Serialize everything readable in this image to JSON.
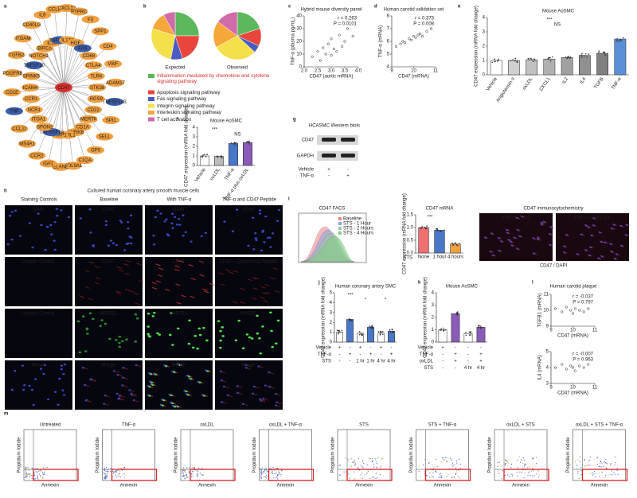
{
  "panel_letters": [
    "a",
    "b",
    "c",
    "d",
    "e",
    "f",
    "g",
    "h",
    "i",
    "j",
    "k",
    "l",
    "m"
  ],
  "a": {
    "center": "CD47",
    "nodes": [
      {
        "label": "STK38",
        "color": "#f0a040"
      },
      {
        "label": "TNFSF13B",
        "color": "#3a5ca8"
      },
      {
        "label": "RGS9",
        "color": "#f0a040"
      },
      {
        "label": "SPI1",
        "color": "#f0a040"
      },
      {
        "label": "CD22",
        "color": "#f0a040"
      },
      {
        "label": "SELL",
        "color": "#f0a040"
      },
      {
        "label": "MERTK",
        "color": "#f0a040"
      },
      {
        "label": "GP5",
        "color": "#f0a040"
      },
      {
        "label": "CD1A",
        "color": "#f0a040"
      },
      {
        "label": "C1QA",
        "color": "#f0a040"
      },
      {
        "label": "AURKB",
        "color": "#f0a040"
      },
      {
        "label": "COL9A1",
        "color": "#f0a040"
      },
      {
        "label": "IL1RL1",
        "color": "#f0a040"
      },
      {
        "label": "ELANE",
        "color": "#f0a040"
      },
      {
        "label": "TIMP1",
        "color": "#f0a040"
      },
      {
        "label": "IGF1",
        "color": "#f0a040"
      },
      {
        "label": "TNFRSF1A",
        "color": "#3a5ca8"
      },
      {
        "label": "CCR2",
        "color": "#f0a040"
      },
      {
        "label": "SPON2",
        "color": "#f0a040"
      },
      {
        "label": "MS4A1",
        "color": "#f0a040"
      },
      {
        "label": "ITGA1",
        "color": "#f0a040"
      },
      {
        "label": "CCL11",
        "color": "#f0a040"
      },
      {
        "label": "NCR1",
        "color": "#f0a040"
      },
      {
        "label": "TNF",
        "color": "#3a5ca8"
      },
      {
        "label": "CCR1",
        "color": "#f0a040"
      },
      {
        "label": "CD1E",
        "color": "#f0a040"
      },
      {
        "label": "ICAM4",
        "color": "#f0a040"
      },
      {
        "label": "PDGFRB",
        "color": "#f0a040"
      },
      {
        "label": "SPINK5",
        "color": "#f0a040"
      },
      {
        "label": "TGFB2",
        "color": "#f0a040"
      },
      {
        "label": "TNFSF10",
        "color": "#3a5ca8"
      },
      {
        "label": "ITGAM",
        "color": "#f0a040"
      },
      {
        "label": "NOTCH1",
        "color": "#f0a040"
      },
      {
        "label": "CD40LG",
        "color": "#f0a040"
      },
      {
        "label": "BIRC5",
        "color": "#f0a040"
      },
      {
        "label": "IL6",
        "color": "#f0a040"
      },
      {
        "label": "IL10",
        "color": "#f0a040"
      },
      {
        "label": "CCL2",
        "color": "#f0a040"
      },
      {
        "label": "TNFRSF4",
        "color": "#3a5ca8"
      },
      {
        "label": "CXCL12",
        "color": "#f0a040"
      },
      {
        "label": "IL17A",
        "color": "#f0a040"
      },
      {
        "label": "PTPRC",
        "color": "#f0a040"
      },
      {
        "label": "HGF",
        "color": "#f0a040"
      },
      {
        "label": "F3",
        "color": "#f0a040"
      },
      {
        "label": "FAS",
        "color": "#3a5ca8"
      },
      {
        "label": "SPP1",
        "color": "#f0a040"
      },
      {
        "label": "CD68",
        "color": "#f0a040"
      },
      {
        "label": "CD4",
        "color": "#f0a040"
      },
      {
        "label": "CTLA4",
        "color": "#f0a040"
      },
      {
        "label": "VWF",
        "color": "#f0a040"
      },
      {
        "label": "TLR4",
        "color": "#f0a040"
      },
      {
        "label": "ADAM17",
        "color": "#f0a040"
      }
    ]
  },
  "b": {
    "pies": [
      {
        "name": "Expected",
        "values": [
          25,
          20,
          8,
          27,
          12,
          8
        ]
      },
      {
        "name": "Observed",
        "values": [
          20,
          12,
          5,
          30,
          18,
          15
        ]
      }
    ],
    "legend": [
      {
        "name": "Inflammation mediated by chemokine and cytokine signaling pathway",
        "color": "#5cb85c",
        "text_color": "#d9302c"
      },
      {
        "name": "Apoptosis signaling pathway",
        "color": "#e8463c",
        "text_color": "#222"
      },
      {
        "name": "Fas signaling pathway",
        "color": "#4a5cc0",
        "text_color": "#222"
      },
      {
        "name": "Integrin signaling pathway",
        "color": "#f3e04a",
        "text_color": "#222"
      },
      {
        "name": "Interleukin signaling pathway",
        "color": "#f5a73a",
        "text_color": "#222"
      },
      {
        "name": "T cell activation",
        "color": "#d16aa8",
        "text_color": "#222"
      }
    ]
  },
  "c": {
    "title": "Hybrid mouse diversity panel",
    "xlabel": "CD47 (aortic mRNA)",
    "ylabel": "TNF-α (plasma pg/mL)",
    "stats": [
      "r = 0.263",
      "P = 0.0101"
    ],
    "x": [
      2.3,
      2.5,
      2.6,
      2.7,
      2.8,
      2.9,
      3.0,
      3.0,
      3.1,
      3.2,
      3.3,
      3.4,
      3.5,
      3.6,
      3.8
    ],
    "y": [
      8,
      12,
      5,
      15,
      10,
      18,
      9,
      22,
      14,
      12,
      25,
      16,
      20,
      30,
      24
    ],
    "xlim": [
      2,
      4
    ],
    "ylim": [
      0,
      40
    ],
    "xticks": [
      {
        "value": 2,
        "label": "2.0"
      },
      {
        "value": 2.5,
        "label": "2.5"
      },
      {
        "value": 3,
        "label": "3.0"
      },
      {
        "value": 3.5,
        "label": "3.5"
      },
      {
        "value": 4,
        "label": "4.0"
      }
    ],
    "yticks": [
      0,
      10,
      20,
      30,
      40
    ]
  },
  "d": {
    "title": "Human carotid validation set",
    "xlabel": "CD47 (mRNA)",
    "ylabel": "TNF-α (mRNA)",
    "stats": [
      "r = 0.373",
      "P = 0.008"
    ],
    "x": [
      9.2,
      9.4,
      9.5,
      9.6,
      9.8,
      9.9,
      10.0,
      10.1,
      10.2,
      10.3,
      10.4,
      10.6,
      10.8
    ],
    "y": [
      5.6,
      5.8,
      6.0,
      5.9,
      6.2,
      6.1,
      6.4,
      6.3,
      6.5,
      6.6,
      6.4,
      6.8,
      7.0
    ],
    "xlim": [
      9,
      11
    ],
    "ylim": [
      4,
      8
    ],
    "xticks": [
      9,
      10,
      11
    ],
    "yticks": [
      4,
      5,
      6,
      7,
      8
    ]
  },
  "e": {
    "title": "Mouse AoSMC",
    "ylabel": "CD47 expression (mRNA fold change)",
    "categories": [
      "Vehicle",
      "Angiotensin II",
      "oxLDL",
      "CXCL1",
      "IL2",
      "IL4",
      "TGFB",
      "TNF-α"
    ],
    "values": [
      1,
      1,
      1.05,
      1.1,
      1.2,
      1.35,
      1.5,
      2.5
    ],
    "colors": [
      "#fff",
      "#d0d0d0",
      "#c0c0c0",
      "#b0b0b0",
      "#a0a0a0",
      "#909090",
      "#808080",
      "#5a8fd8"
    ],
    "ylim": [
      0,
      4
    ],
    "yticks": [
      0,
      1,
      2,
      3,
      4
    ],
    "annotations": [
      "***",
      "NS"
    ]
  },
  "f": {
    "title": "Mouse AoSMC",
    "ylabel": "CD47 expression (mRNA fold change)",
    "categories": [
      "Vehicle",
      "oxLDL",
      "TNF-α",
      "TNF-α plus oxLDL"
    ],
    "values": [
      1,
      0.95,
      2.3,
      2.4
    ],
    "colors": [
      "#fff",
      "#bbb",
      "#4a78c8",
      "#8a5cb8"
    ],
    "ylim": [
      0,
      4
    ],
    "yticks": [
      0,
      1,
      2,
      3,
      4
    ],
    "annotations": [
      "***",
      "NS"
    ]
  },
  "g": {
    "title": "HCASMC Western blots",
    "bands": [
      "CD47",
      "GAPDH"
    ],
    "conditions": [
      {
        "label": "Vehicle",
        "cells": [
          "+",
          "-"
        ]
      },
      {
        "label": "TNF-α",
        "cells": [
          "-",
          "+"
        ]
      }
    ]
  },
  "h": {
    "title": "Cultured human coronary artery smooth muscle cells",
    "headers": [
      "Staining Controls",
      "Baseline",
      "With TNF-α",
      "TNF-α and CD47 Peptide"
    ],
    "rows": [
      {
        "color": "#6fa8ff",
        "cells": [
          "DAPI",
          "DAPI",
          "DAPI",
          "DAPI"
        ]
      },
      {
        "color": "#ff5050",
        "cells": [
          "Isotype Control",
          "CD47",
          "CD47",
          "CD47 + Quenching Peptide"
        ]
      },
      {
        "color": "#5cd65c",
        "cells": [
          "Isotype Control",
          "HMGB1",
          "HMGB1",
          "HMGB1"
        ]
      },
      {
        "color": "#c07ce8",
        "cells": [
          "Merge",
          "Merge",
          "Merge",
          "Merge"
        ]
      }
    ]
  },
  "i": {
    "facs_title": "CD47 FACS",
    "facs_legend": [
      {
        "name": "Baseline",
        "color": "#f08080"
      },
      {
        "name": "STS - 1 Hour",
        "color": "#80a8e8"
      },
      {
        "name": "STS - 2 Hours",
        "color": "#9cc8a0"
      },
      {
        "name": "STS - 4 Hours",
        "color": "#80d080"
      }
    ],
    "mrna": {
      "title": "CD47 mRNA",
      "ylabel": "CD47 expression (mRNA fold change)",
      "xlabel": "STS",
      "categories": [
        "None",
        "1 hour",
        "4 hours"
      ],
      "values": [
        1,
        0.9,
        0.35
      ],
      "colors": [
        "#f07070",
        "#4a78c8",
        "#f0a040"
      ],
      "ylim": [
        0,
        1.5
      ],
      "yticks": [
        {
          "value": 0,
          "label": "0.0"
        },
        {
          "value": 0.5,
          "label": "0.5"
        },
        {
          "value": 1,
          "label": "1.0"
        },
        {
          "value": 1.5,
          "label": "1.5"
        }
      ],
      "annotations": [
        "***"
      ]
    },
    "icc_title": "CD47 immunocytochemistry",
    "icc_panels": [
      "TNF-α - STS",
      "TNF-α + STS 4hr"
    ],
    "icc_caption": "CD47 / DAPI"
  },
  "j": {
    "title": "Human coronary artery SMC",
    "ylabel": "CD47 expression (mRNA fold change)",
    "values": [
      1,
      2.3,
      0.9,
      1.5,
      0.9,
      1.1
    ],
    "colors": [
      "#fff",
      "#4a78c8",
      "#fff",
      "#4a78c8",
      "#fff",
      "#4a78c8"
    ],
    "ylim": [
      0,
      5
    ],
    "yticks": [
      0,
      1,
      2,
      3,
      4,
      5
    ],
    "annotations": [
      "***",
      "*",
      "*"
    ],
    "conditions": [
      {
        "label": "Vehicle",
        "cells": [
          "+",
          "-",
          "+",
          "-",
          "+",
          "-"
        ]
      },
      {
        "label": "TNF-α",
        "cells": [
          "-",
          "+",
          "-",
          "+",
          "-",
          "+"
        ]
      },
      {
        "label": "STS",
        "cells": [
          "-",
          "-",
          "1 hr",
          "1 hr",
          "4 hr",
          "4 hr"
        ]
      }
    ]
  },
  "k": {
    "title": "Mouse AoSMC",
    "ylabel": "CD47 expression (mRNA fold change)",
    "values": [
      1,
      2.3,
      0.7,
      1.2
    ],
    "colors": [
      "#fff",
      "#8a5cb8",
      "#fff",
      "#8a5cb8"
    ],
    "ylim": [
      0,
      4
    ],
    "yticks": [
      0,
      1,
      2,
      3,
      4
    ],
    "conditions": [
      {
        "label": "Vehicle",
        "cells": [
          "+",
          "-",
          "-",
          "-"
        ]
      },
      {
        "label": "TNF-α",
        "cells": [
          "-",
          "+",
          "-",
          "+"
        ]
      },
      {
        "label": "oxLDL",
        "cells": [
          "-",
          "+",
          "-",
          "+"
        ]
      },
      {
        "label": "STS",
        "cells": [
          "-",
          "-",
          "4 hr",
          "4 hr"
        ]
      }
    ]
  },
  "l": {
    "title": "Human carotid plaque",
    "plots": [
      {
        "xlabel": "CD47 (mRNA)",
        "ylabel": "TGFB1 (mRNA)",
        "stats": [
          "r = -0.037",
          "P = 0.797"
        ],
        "x": [
          9.2,
          9.5,
          9.7,
          9.9,
          10.0,
          10.1,
          10.3,
          10.5,
          10.7
        ],
        "y": [
          10.1,
          9.9,
          10.2,
          10.0,
          9.8,
          10.1,
          10.0,
          9.9,
          10.1
        ],
        "xlim": [
          9,
          11
        ],
        "ylim": [
          9,
          11
        ],
        "xticks": [
          9,
          10,
          11
        ],
        "yticks": [
          9,
          10,
          11
        ]
      },
      {
        "xlabel": "CD47 (mRNA)",
        "ylabel": "IL4 (mRNA)",
        "stats": [
          "r = -0.007",
          "P = 0.963"
        ],
        "x": [
          9.2,
          9.5,
          9.7,
          9.9,
          10.0,
          10.1,
          10.3,
          10.5,
          10.7
        ],
        "y": [
          4.0,
          4.2,
          3.9,
          4.1,
          4.0,
          3.8,
          4.1,
          4.0,
          4.2
        ],
        "xlim": [
          9,
          11
        ],
        "ylim": [
          3,
          5
        ],
        "xticks": [
          9,
          10,
          11
        ],
        "yticks": [
          3,
          4,
          5
        ]
      }
    ]
  },
  "m": {
    "xlabel": "Annexin",
    "ylabel": "Propidium Iodide",
    "plots": [
      "Untreated",
      "TNF-α",
      "oxLDL",
      "oxLDL + TNF-α",
      "STS",
      "STS + TNF-α",
      "oxLDL + STS",
      "oxLDL + STS + TNF-α"
    ]
  }
}
